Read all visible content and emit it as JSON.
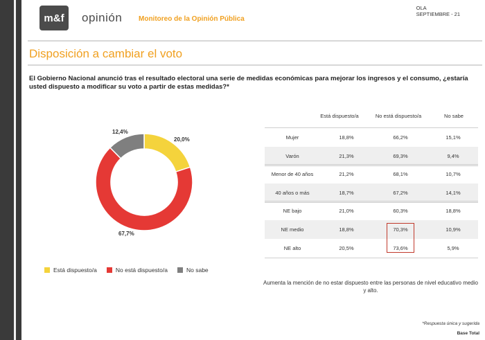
{
  "header": {
    "logo_text": "m&f",
    "brand": "opinión",
    "subtitle": "Monitoreo de la Opinión Pública",
    "ola_line1": "OLA",
    "ola_line2": "SEPTIEMBRE - 21"
  },
  "headline": "Disposición a cambiar el voto",
  "question": "El Gobierno Nacional anunció tras el resultado electoral una serie de medidas económicas para mejorar los ingresos y el consumo, ¿estaría usted dispuesto a modificar su voto a partir de estas medidas?*",
  "colors": {
    "yellow": "#f4d33c",
    "red": "#e53935",
    "gray": "#7f7f7f",
    "accent": "#f0a020"
  },
  "chart_data": [
    {
      "type": "pie",
      "variant": "donut",
      "categories": [
        "Está dispuesto/a",
        "No está dispuesto/a",
        "No sabe"
      ],
      "values": [
        20.0,
        67.7,
        12.4
      ],
      "labels": [
        "20,0%",
        "67,7%",
        "12,4%"
      ],
      "legend_position": "bottom"
    },
    {
      "type": "table",
      "columns": [
        "",
        "Está dispuesto/a",
        "No está dispuesto/a",
        "No sabe"
      ],
      "groups": [
        {
          "rows": [
            {
              "label": "Mujer",
              "values": [
                "18,8%",
                "66,2%",
                "15,1%"
              ]
            },
            {
              "label": "Varón",
              "values": [
                "21,3%",
                "69,3%",
                "9,4%"
              ]
            }
          ]
        },
        {
          "rows": [
            {
              "label": "Menor de 40 años",
              "values": [
                "21,2%",
                "68,1%",
                "10,7%"
              ]
            },
            {
              "label": "40 años o más",
              "values": [
                "18,7%",
                "67,2%",
                "14,1%"
              ]
            }
          ]
        },
        {
          "rows": [
            {
              "label": "NE bajo",
              "values": [
                "21,0%",
                "60,3%",
                "18,8%"
              ]
            },
            {
              "label": "NE medio",
              "values": [
                "18,8%",
                "70,3%",
                "10,9%"
              ]
            },
            {
              "label": "NE alto",
              "values": [
                "20,5%",
                "73,6%",
                "5,9%"
              ]
            }
          ]
        }
      ]
    }
  ],
  "note": "Aumenta la mención de no estar dispuesto entre las personas de nivel educativo medio y alto.",
  "footnote": "*Respuesta única y sugerida",
  "base": "Base Total"
}
